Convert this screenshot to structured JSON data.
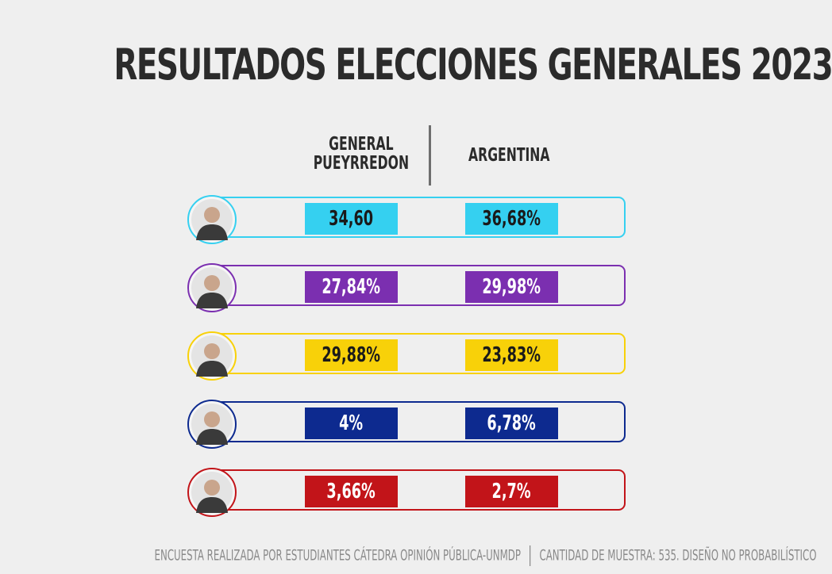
{
  "title": "RESULTADOS ELECCIONES GENERALES 2023",
  "columns": {
    "general_pueyrredon": "GENERAL\nPUEYRREDON",
    "argentina": "ARGENTINA"
  },
  "chart_data": {
    "type": "table",
    "columns": [
      "GENERAL\nPUEYRREDON",
      "ARGENTINA"
    ],
    "rows": [
      {
        "color": "#35d0f0",
        "text_color": "#1a1a1a",
        "general_pueyrredon": "34,60",
        "argentina": "36,68%"
      },
      {
        "color": "#7b2fb0",
        "text_color": "#ffffff",
        "general_pueyrredon": "27,84%",
        "argentina": "29,98%"
      },
      {
        "color": "#f8d109",
        "text_color": "#1a1a1a",
        "general_pueyrredon": "29,88%",
        "argentina": "23,83%"
      },
      {
        "color": "#0d2a8f",
        "text_color": "#ffffff",
        "general_pueyrredon": "4%",
        "argentina": "6,78%"
      },
      {
        "color": "#c21419",
        "text_color": "#ffffff",
        "general_pueyrredon": "3,66%",
        "argentina": "2,7%"
      }
    ]
  },
  "footer": {
    "left": "ENCUESTA REALIZADA POR ESTUDIANTES CÁTEDRA OPINIÓN PÚBLICA-UNMDP",
    "right": "CANTIDAD DE MUESTRA: 535. DISEÑO NO PROBABILÍSTICO"
  },
  "icons": [
    "candidate-photo-icon"
  ],
  "colors": {
    "background": "#efefef",
    "title": "#2b2b2b",
    "footer": "#8a8a8a"
  }
}
